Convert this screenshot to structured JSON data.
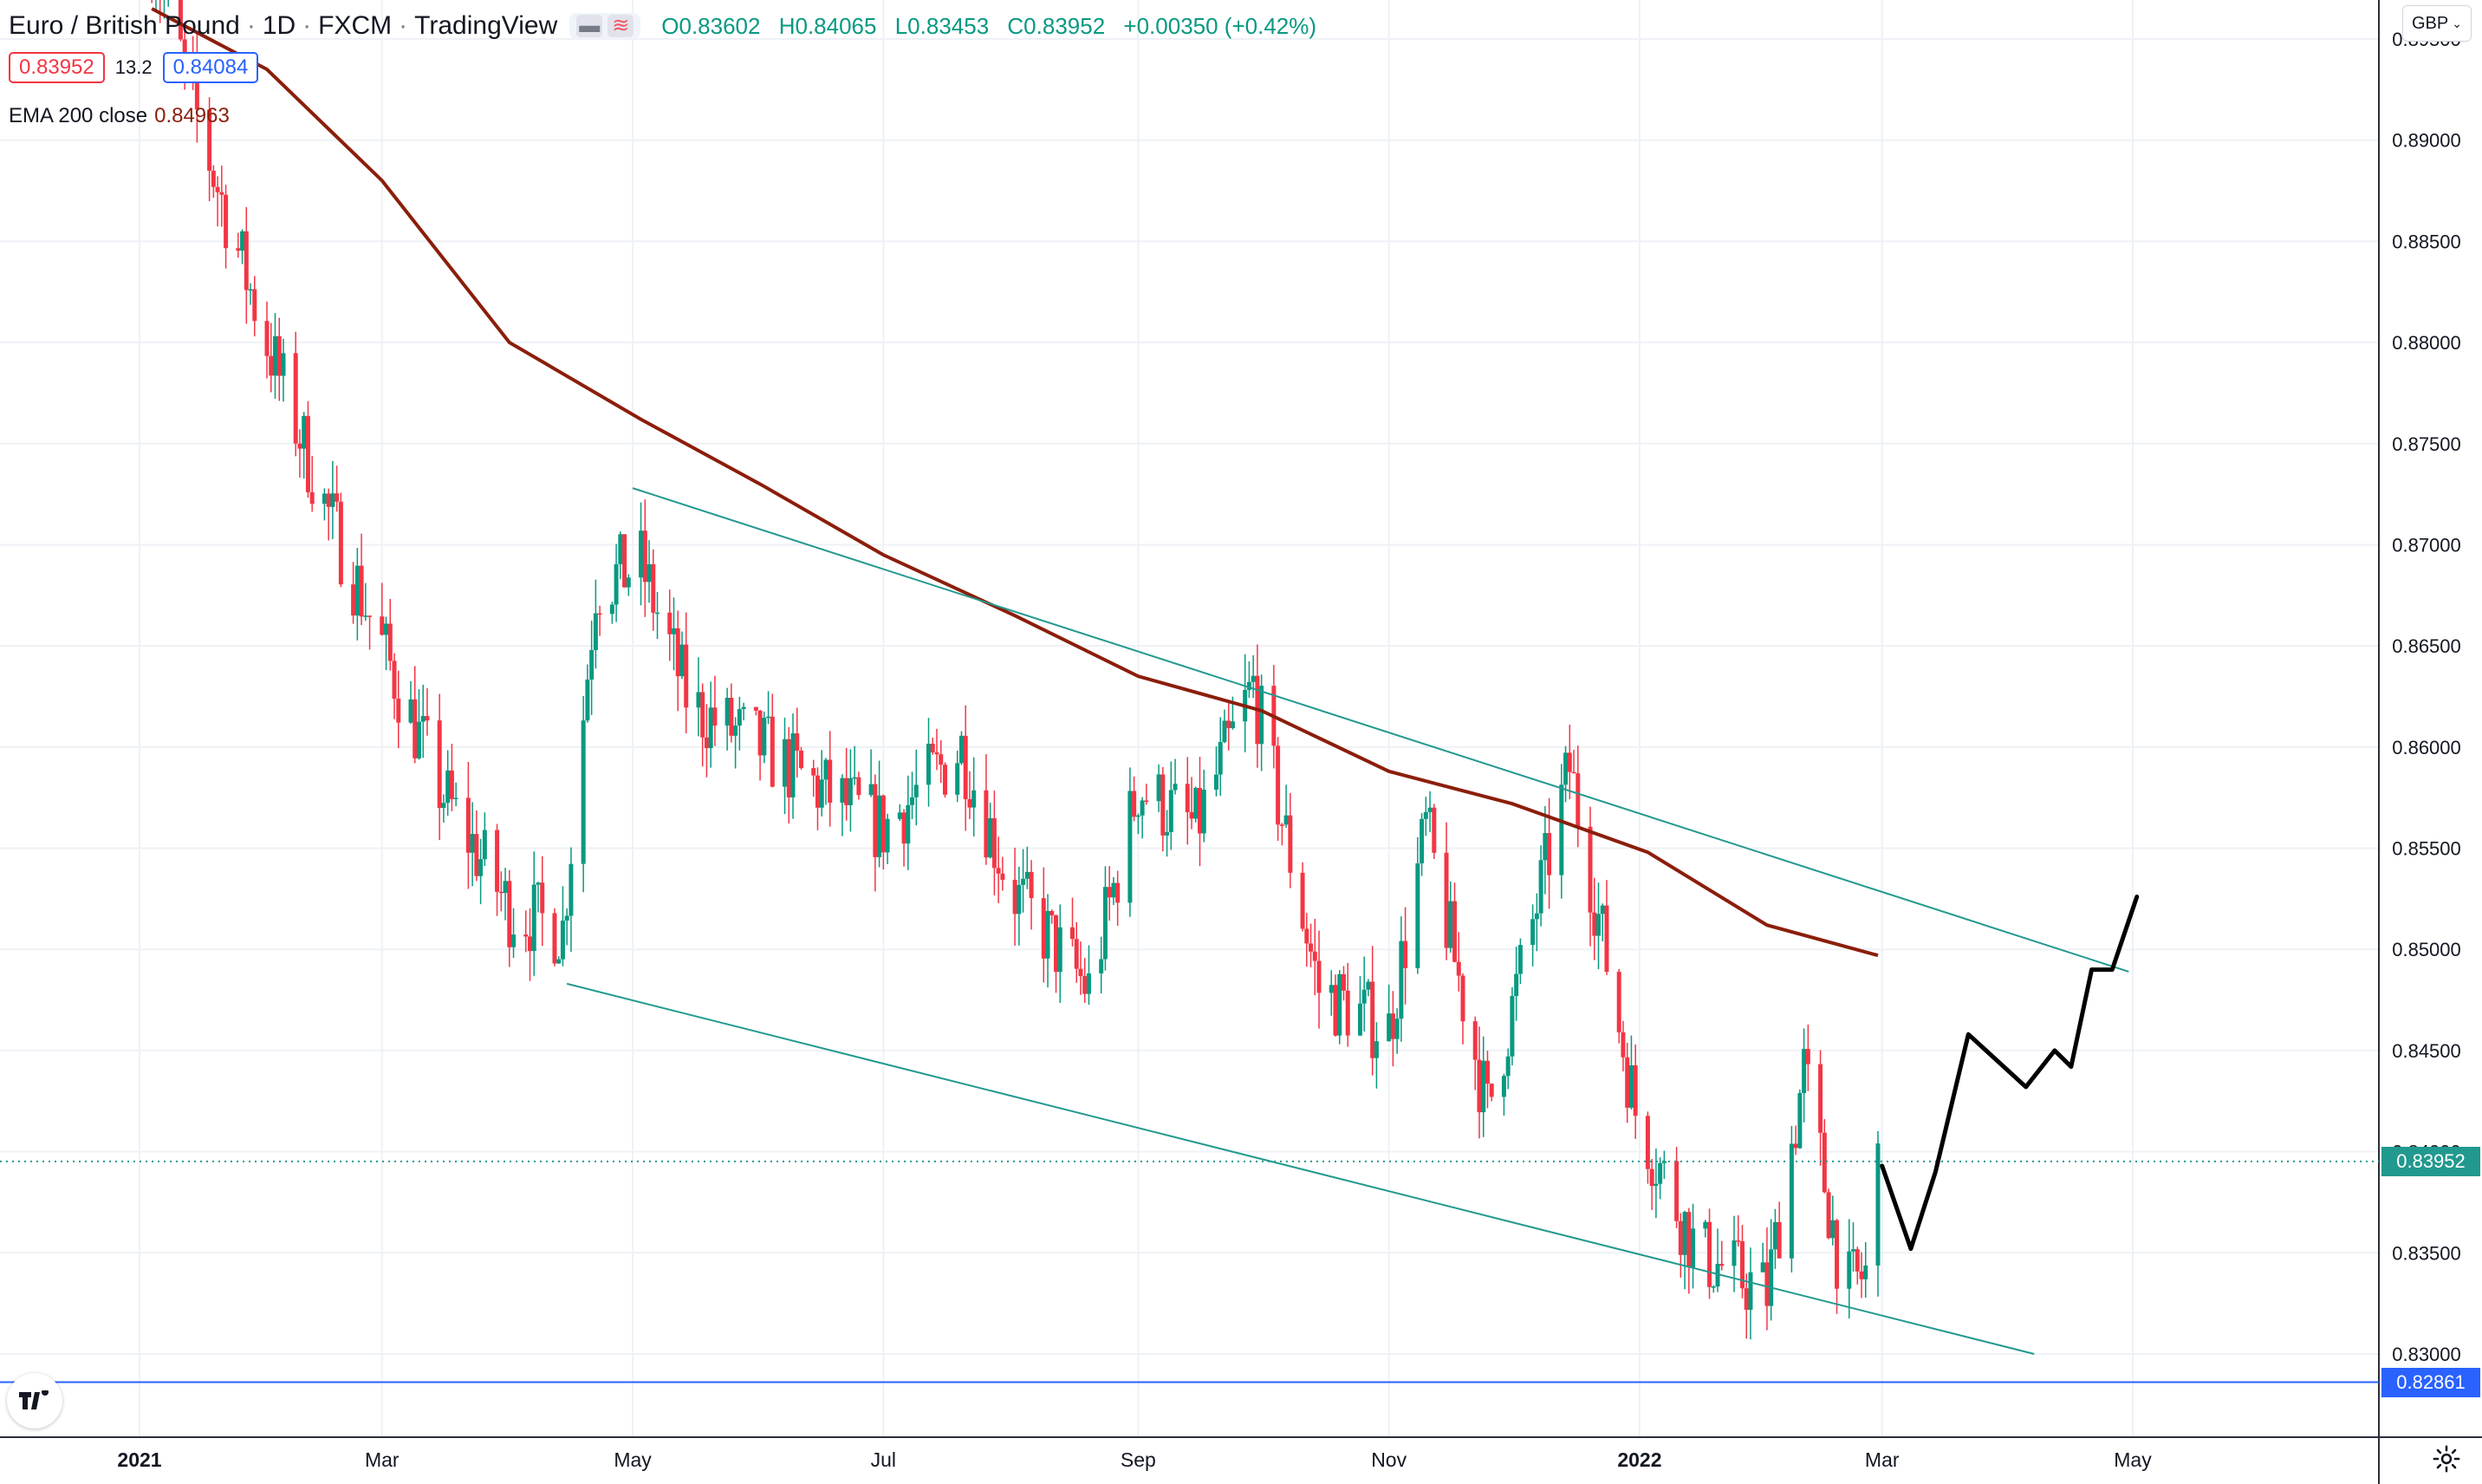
{
  "header": {
    "symbol_name": "Euro / British Pound",
    "interval": "1D",
    "exchange": "FXCM",
    "source": "TradingView",
    "open": "O0.83602",
    "high": "H0.84065",
    "low": "L0.83453",
    "close": "C0.83952",
    "change": "+0.00350 (+0.42%)"
  },
  "quote": {
    "sell": "0.83952",
    "spread": "13.2",
    "buy": "0.84084"
  },
  "indicator": {
    "label": "EMA 200 close",
    "value": "0.84963"
  },
  "currency": "GBP",
  "price_tags": {
    "last": "0.83952",
    "line": "0.82861"
  },
  "colors": {
    "up": "#089981",
    "down": "#f23645",
    "ema": "#8b1e0b",
    "channel": "#22998f",
    "hline": "#2962ff"
  },
  "chart_data": {
    "type": "line",
    "series": [
      {
        "name": "EMA 200 close",
        "x": [
          "2021-01-04",
          "2021-02-01",
          "2021-03-01",
          "2021-04-01",
          "2021-05-03",
          "2021-06-01",
          "2021-07-01",
          "2021-08-02",
          "2021-09-01",
          "2021-10-01",
          "2021-11-01",
          "2021-12-01",
          "2022-01-03",
          "2022-02-01",
          "2022-02-28"
        ],
        "y": [
          0.8965,
          0.8935,
          0.888,
          0.88,
          0.8762,
          0.873,
          0.8695,
          0.8665,
          0.8635,
          0.8618,
          0.8588,
          0.8572,
          0.8548,
          0.8512,
          0.8497
        ]
      }
    ],
    "trendlines": [
      {
        "name": "",
        "x": [
          "2021-05-01",
          "2022-04-30"
        ],
        "y": [
          0.8728,
          0.8489
        ]
      },
      {
        "name": "",
        "x": [
          "2021-04-15",
          "2022-04-07"
        ],
        "y": [
          0.8483,
          0.83
        ]
      }
    ],
    "horizontal_lines": [
      0.82861,
      0.83952
    ],
    "drawing": {
      "x": [
        "2022-03-01",
        "2022-03-08",
        "2022-03-14",
        "2022-03-22",
        "2022-04-05",
        "2022-04-12",
        "2022-04-16",
        "2022-04-21",
        "2022-04-26",
        "2022-05-02"
      ],
      "y": [
        0.8393,
        0.8352,
        0.839,
        0.8458,
        0.8432,
        0.845,
        0.8442,
        0.849,
        0.849,
        0.8526
      ]
    },
    "xaxis_ticks": [
      "2021",
      "Mar",
      "May",
      "Jul",
      "Sep",
      "Nov",
      "2022",
      "Mar",
      "May"
    ],
    "yaxis_ticks": [
      "0.83000",
      "0.83500",
      "0.84000",
      "0.84500",
      "0.85000",
      "0.85500",
      "0.86000",
      "0.86500",
      "0.87000",
      "0.87500",
      "0.88000",
      "0.88500",
      "0.89000",
      "0.89500"
    ],
    "ylim": [
      0.8287,
      0.8953
    ],
    "grid": true
  }
}
